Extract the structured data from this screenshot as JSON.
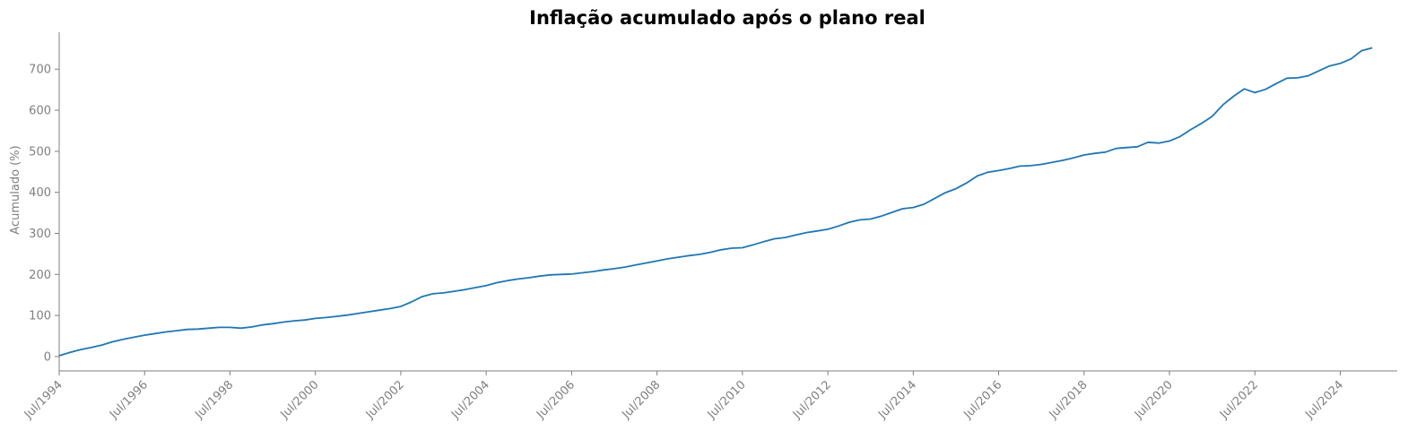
{
  "chart_data": {
    "type": "line",
    "title": "Inflação acumulado após o plano real",
    "xlabel": "",
    "ylabel": "Acumulado (%)",
    "ylim": [
      -35,
      790
    ],
    "xlim": [
      "1994-07",
      "2025-11"
    ],
    "yticks": [
      0,
      100,
      200,
      300,
      400,
      500,
      600,
      700
    ],
    "xticks": [
      {
        "date": "1994-07",
        "label": "Jul/1994"
      },
      {
        "date": "1996-07",
        "label": "Jul/1996"
      },
      {
        "date": "1998-07",
        "label": "Jul/1998"
      },
      {
        "date": "2000-07",
        "label": "Jul/2000"
      },
      {
        "date": "2002-07",
        "label": "Jul/2002"
      },
      {
        "date": "2004-07",
        "label": "Jul/2004"
      },
      {
        "date": "2006-07",
        "label": "Jul/2006"
      },
      {
        "date": "2008-07",
        "label": "Jul/2008"
      },
      {
        "date": "2010-07",
        "label": "Jul/2010"
      },
      {
        "date": "2012-07",
        "label": "Jul/2012"
      },
      {
        "date": "2014-07",
        "label": "Jul/2014"
      },
      {
        "date": "2016-07",
        "label": "Jul/2016"
      },
      {
        "date": "2018-07",
        "label": "Jul/2018"
      },
      {
        "date": "2020-07",
        "label": "Jul/2020"
      },
      {
        "date": "2022-07",
        "label": "Jul/2022"
      },
      {
        "date": "2024-07",
        "label": "Jul/2024"
      }
    ],
    "grid": false,
    "color": "#1f77b4",
    "series": [
      {
        "name": "",
        "points": [
          [
            "1994-07",
            2
          ],
          [
            "1994-10",
            10
          ],
          [
            "1995-01",
            17
          ],
          [
            "1995-04",
            22
          ],
          [
            "1995-07",
            28
          ],
          [
            "1995-10",
            36
          ],
          [
            "1996-01",
            42
          ],
          [
            "1996-04",
            47
          ],
          [
            "1996-07",
            52
          ],
          [
            "1996-10",
            56
          ],
          [
            "1997-01",
            60
          ],
          [
            "1997-04",
            63
          ],
          [
            "1997-07",
            66
          ],
          [
            "1997-10",
            67
          ],
          [
            "1998-01",
            69
          ],
          [
            "1998-04",
            71
          ],
          [
            "1998-07",
            71
          ],
          [
            "1998-10",
            69
          ],
          [
            "1999-01",
            72
          ],
          [
            "1999-04",
            77
          ],
          [
            "1999-07",
            80
          ],
          [
            "1999-10",
            84
          ],
          [
            "2000-01",
            87
          ],
          [
            "2000-04",
            89
          ],
          [
            "2000-07",
            93
          ],
          [
            "2000-10",
            95
          ],
          [
            "2001-01",
            98
          ],
          [
            "2001-04",
            101
          ],
          [
            "2001-07",
            105
          ],
          [
            "2001-10",
            109
          ],
          [
            "2002-01",
            113
          ],
          [
            "2002-04",
            117
          ],
          [
            "2002-07",
            122
          ],
          [
            "2002-10",
            133
          ],
          [
            "2003-01",
            146
          ],
          [
            "2003-04",
            153
          ],
          [
            "2003-07",
            155
          ],
          [
            "2003-10",
            159
          ],
          [
            "2004-01",
            163
          ],
          [
            "2004-04",
            168
          ],
          [
            "2004-07",
            173
          ],
          [
            "2004-10",
            180
          ],
          [
            "2005-01",
            185
          ],
          [
            "2005-04",
            189
          ],
          [
            "2005-07",
            192
          ],
          [
            "2005-10",
            196
          ],
          [
            "2006-01",
            199
          ],
          [
            "2006-04",
            200
          ],
          [
            "2006-07",
            201
          ],
          [
            "2006-10",
            204
          ],
          [
            "2007-01",
            207
          ],
          [
            "2007-04",
            211
          ],
          [
            "2007-07",
            214
          ],
          [
            "2007-10",
            218
          ],
          [
            "2008-01",
            223
          ],
          [
            "2008-04",
            228
          ],
          [
            "2008-07",
            233
          ],
          [
            "2008-10",
            238
          ],
          [
            "2009-01",
            242
          ],
          [
            "2009-04",
            246
          ],
          [
            "2009-07",
            249
          ],
          [
            "2009-10",
            254
          ],
          [
            "2010-01",
            260
          ],
          [
            "2010-04",
            264
          ],
          [
            "2010-07",
            265
          ],
          [
            "2010-10",
            272
          ],
          [
            "2011-01",
            280
          ],
          [
            "2011-04",
            287
          ],
          [
            "2011-07",
            290
          ],
          [
            "2011-10",
            296
          ],
          [
            "2012-01",
            302
          ],
          [
            "2012-04",
            306
          ],
          [
            "2012-07",
            310
          ],
          [
            "2012-10",
            318
          ],
          [
            "2013-01",
            327
          ],
          [
            "2013-04",
            333
          ],
          [
            "2013-07",
            335
          ],
          [
            "2013-10",
            342
          ],
          [
            "2014-01",
            351
          ],
          [
            "2014-04",
            360
          ],
          [
            "2014-07",
            363
          ],
          [
            "2014-10",
            371
          ],
          [
            "2015-01",
            385
          ],
          [
            "2015-04",
            399
          ],
          [
            "2015-07",
            409
          ],
          [
            "2015-10",
            423
          ],
          [
            "2016-01",
            440
          ],
          [
            "2016-04",
            449
          ],
          [
            "2016-07",
            453
          ],
          [
            "2016-10",
            458
          ],
          [
            "2017-01",
            464
          ],
          [
            "2017-04",
            465
          ],
          [
            "2017-07",
            468
          ],
          [
            "2017-10",
            473
          ],
          [
            "2018-01",
            478
          ],
          [
            "2018-04",
            484
          ],
          [
            "2018-07",
            491
          ],
          [
            "2018-10",
            495
          ],
          [
            "2019-01",
            498
          ],
          [
            "2019-04",
            507
          ],
          [
            "2019-07",
            509
          ],
          [
            "2019-10",
            511
          ],
          [
            "2020-01",
            522
          ],
          [
            "2020-04",
            520
          ],
          [
            "2020-07",
            525
          ],
          [
            "2020-10",
            536
          ],
          [
            "2021-01",
            553
          ],
          [
            "2021-04",
            568
          ],
          [
            "2021-07",
            585
          ],
          [
            "2021-10",
            613
          ],
          [
            "2022-01",
            634
          ],
          [
            "2022-04",
            652
          ],
          [
            "2022-07",
            643
          ],
          [
            "2022-10",
            651
          ],
          [
            "2023-01",
            665
          ],
          [
            "2023-04",
            678
          ],
          [
            "2023-07",
            679
          ],
          [
            "2023-10",
            684
          ],
          [
            "2024-01",
            696
          ],
          [
            "2024-04",
            708
          ],
          [
            "2024-07",
            714
          ],
          [
            "2024-10",
            725
          ],
          [
            "2025-01",
            745
          ],
          [
            "2025-04",
            752
          ]
        ]
      }
    ]
  }
}
